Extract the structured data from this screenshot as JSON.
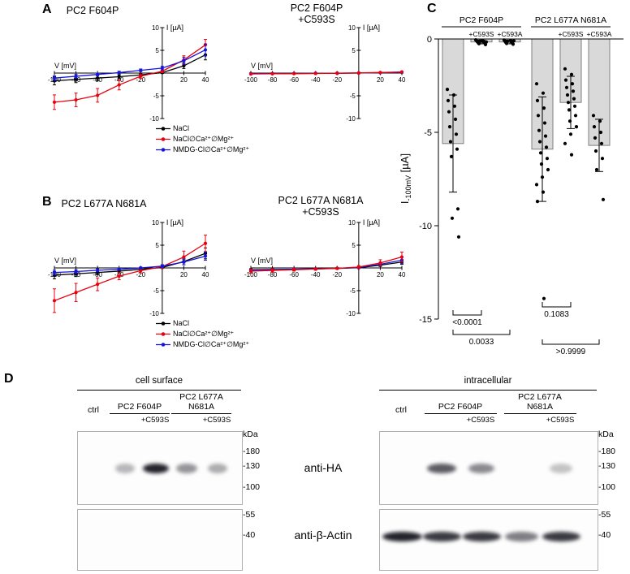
{
  "panels": {
    "a": {
      "label": "A"
    },
    "b": {
      "label": "B"
    },
    "c": {
      "label": "C"
    },
    "d": {
      "label": "D"
    }
  },
  "colors": {
    "black_series": "#000000",
    "red_series": "#e8000d",
    "blue_series": "#1414dc",
    "bar_fill": "#d9d9d9"
  },
  "legend": {
    "items": [
      {
        "label": "NaCl",
        "color": "#000000"
      },
      {
        "label": "NaCl∅Ca²⁺∅Mg²⁺",
        "color": "#e8000d"
      },
      {
        "label": "NMDG-Cl∅Ca²⁺∅Mg²⁺",
        "color": "#1414dc"
      }
    ]
  },
  "chart_data": [
    {
      "id": "a1",
      "type": "line",
      "title": "PC2 F604P",
      "title2": "",
      "xlabel": "V [mV]",
      "ylabel": "I [µA]",
      "xlim": [
        -100,
        40
      ],
      "ylim": [
        -10,
        10
      ],
      "x": [
        -100,
        -80,
        -60,
        -40,
        -20,
        0,
        20,
        40
      ],
      "x_ticks": [
        -100,
        -80,
        -60,
        -40,
        -20,
        20,
        40
      ],
      "y_ticks": [
        -10,
        -5,
        5,
        10
      ],
      "series": [
        {
          "name": "NaCl",
          "color": "#000000",
          "y": [
            -1.7,
            -1.4,
            -1.1,
            -0.8,
            -0.4,
            0.1,
            1.6,
            4.0
          ],
          "err": [
            0.9,
            0.7,
            0.6,
            0.4,
            0.3,
            0.2,
            0.6,
            1.1
          ]
        },
        {
          "name": "NaCl∅Ca²⁺∅Mg²⁺",
          "color": "#e8000d",
          "y": [
            -6.4,
            -5.9,
            -4.9,
            -2.6,
            -0.7,
            0.4,
            2.9,
            6.2
          ],
          "err": [
            1.6,
            1.5,
            1.5,
            1.1,
            0.5,
            0.3,
            0.9,
            1.2
          ]
        },
        {
          "name": "NMDG-Cl∅Ca²⁺∅Mg²⁺",
          "color": "#1414dc",
          "y": [
            -1.1,
            -0.7,
            -0.3,
            0.1,
            0.6,
            1.1,
            2.7,
            5.1
          ],
          "err": [
            0.5,
            0.4,
            0.3,
            0.3,
            0.3,
            0.4,
            0.8,
            1.3
          ]
        }
      ]
    },
    {
      "id": "a2",
      "type": "line",
      "title": "PC2 F604P",
      "title2": "+C593S",
      "xlabel": "V [mV]",
      "ylabel": "I [µA]",
      "xlim": [
        -100,
        40
      ],
      "ylim": [
        -10,
        10
      ],
      "x": [
        -100,
        -80,
        -60,
        -40,
        -20,
        0,
        20,
        40
      ],
      "x_ticks": [
        -100,
        -80,
        -60,
        -40,
        -20,
        20,
        40
      ],
      "y_ticks": [
        -10,
        -5,
        5,
        10
      ],
      "series": [
        {
          "name": "NaCl",
          "color": "#000000",
          "y": [
            -0.15,
            -0.12,
            -0.1,
            -0.07,
            -0.04,
            0,
            0.1,
            0.2
          ],
          "err": [
            0.1,
            0.1,
            0.1,
            0.1,
            0.1,
            0.1,
            0.1,
            0.1
          ]
        },
        {
          "name": "NMDG-Cl∅Ca²⁺∅Mg²⁺",
          "color": "#1414dc",
          "y": [
            -0.12,
            -0.1,
            -0.08,
            -0.05,
            -0.02,
            0.02,
            0.08,
            0.15
          ],
          "err": [
            0.08,
            0.08,
            0.08,
            0.08,
            0.08,
            0.08,
            0.08,
            0.08
          ]
        },
        {
          "name": "NaCl∅Ca²⁺∅Mg²⁺",
          "color": "#e8000d",
          "y": [
            -0.2,
            -0.16,
            -0.12,
            -0.08,
            -0.03,
            0.03,
            0.12,
            0.25
          ],
          "err": [
            0.12,
            0.12,
            0.12,
            0.12,
            0.12,
            0.12,
            0.12,
            0.12
          ]
        }
      ]
    },
    {
      "id": "b1",
      "type": "line",
      "title": "PC2 L677A N681A",
      "title2": "",
      "xlabel": "V [mV]",
      "ylabel": "I [µA]",
      "xlim": [
        -100,
        40
      ],
      "ylim": [
        -10,
        10
      ],
      "x": [
        -100,
        -80,
        -60,
        -40,
        -20,
        0,
        20,
        40
      ],
      "x_ticks": [
        -100,
        -80,
        -60,
        -40,
        -20,
        20,
        40
      ],
      "y_ticks": [
        -10,
        -5,
        5,
        10
      ],
      "series": [
        {
          "name": "NaCl",
          "color": "#000000",
          "y": [
            -1.6,
            -1.3,
            -1.0,
            -0.7,
            -0.3,
            0.1,
            1.4,
            3.2
          ],
          "err": [
            0.8,
            0.6,
            0.5,
            0.4,
            0.2,
            0.2,
            0.7,
            1.2
          ]
        },
        {
          "name": "NaCl∅Ca²⁺∅Mg²⁺",
          "color": "#e8000d",
          "y": [
            -7.2,
            -5.4,
            -3.6,
            -1.8,
            -0.6,
            0.3,
            2.4,
            5.4
          ],
          "err": [
            2.6,
            2.0,
            1.4,
            0.8,
            0.5,
            0.4,
            1.3,
            1.8
          ]
        },
        {
          "name": "NMDG-Cl∅Ca²⁺∅Mg²⁺",
          "color": "#1414dc",
          "y": [
            -1.0,
            -0.8,
            -0.5,
            -0.3,
            0.0,
            0.4,
            1.3,
            2.6
          ],
          "err": [
            0.5,
            0.4,
            0.3,
            0.2,
            0.2,
            0.3,
            0.6,
            0.9
          ]
        }
      ]
    },
    {
      "id": "b2",
      "type": "line",
      "title": "PC2 L677A N681A",
      "title2": "+C593S",
      "xlabel": "V [mV]",
      "ylabel": "I [µA]",
      "xlim": [
        -100,
        40
      ],
      "ylim": [
        -10,
        10
      ],
      "x": [
        -100,
        -80,
        -60,
        -40,
        -20,
        0,
        20,
        40
      ],
      "x_ticks": [
        -100,
        -80,
        -60,
        -40,
        -20,
        20,
        40
      ],
      "y_ticks": [
        -10,
        -5,
        5,
        10
      ],
      "series": [
        {
          "name": "NaCl",
          "color": "#000000",
          "y": [
            -0.4,
            -0.35,
            -0.3,
            -0.2,
            -0.1,
            0.05,
            0.6,
            1.3
          ],
          "err": [
            0.25,
            0.2,
            0.2,
            0.15,
            0.1,
            0.1,
            0.3,
            0.5
          ]
        },
        {
          "name": "NMDG-Cl∅Ca²⁺∅Mg²⁺",
          "color": "#1414dc",
          "y": [
            -0.5,
            -0.4,
            -0.3,
            -0.2,
            -0.1,
            0.1,
            0.8,
            1.7
          ],
          "err": [
            0.3,
            0.25,
            0.2,
            0.2,
            0.15,
            0.2,
            0.4,
            0.7
          ]
        },
        {
          "name": "NaCl∅Ca²⁺∅Mg²⁺",
          "color": "#e8000d",
          "y": [
            -0.7,
            -0.55,
            -0.4,
            -0.25,
            -0.1,
            0.2,
            1.1,
            2.4
          ],
          "err": [
            0.45,
            0.4,
            0.3,
            0.25,
            0.2,
            0.3,
            0.7,
            1.1
          ]
        }
      ]
    },
    {
      "id": "c",
      "type": "bar",
      "ylabel_main": "I",
      "ylabel_sub": "-100mV",
      "ylabel_unit": " [µA]",
      "ylim": [
        -15,
        0
      ],
      "y_ticks": [
        0,
        -5,
        -10,
        -15
      ],
      "bar_fill": "#d9d9d9",
      "groups": [
        {
          "label": "PC2 F604P",
          "bars": [
            0,
            1,
            2
          ]
        },
        {
          "label": "PC2 L677A N681A",
          "bars": [
            3,
            4,
            5
          ]
        }
      ],
      "bar_sublabels": [
        "",
        "+C593S",
        "+C593A",
        "",
        "+C593S",
        "+C593A"
      ],
      "values": [
        -5.6,
        -0.16,
        -0.16,
        -5.9,
        -3.4,
        -5.7
      ],
      "errors": [
        2.6,
        0.1,
        0.1,
        2.8,
        1.4,
        1.4
      ],
      "dots": [
        [
          -2.7,
          -3.0,
          -3.3,
          -3.6,
          -3.9,
          -4.3,
          -4.7,
          -5.1,
          -5.5,
          -5.9,
          -6.3,
          -9.1,
          -9.6,
          -10.6
        ],
        [
          -0.05,
          -0.08,
          -0.1,
          -0.12,
          -0.15,
          -0.18,
          -0.2,
          -0.22,
          -0.25,
          -0.3,
          -0.12,
          -0.16
        ],
        [
          -0.06,
          -0.09,
          -0.12,
          -0.15,
          -0.18,
          -0.2,
          -0.24,
          -0.28,
          -0.14,
          -0.1
        ],
        [
          -2.4,
          -2.9,
          -3.3,
          -3.7,
          -4.1,
          -4.5,
          -4.9,
          -5.2,
          -5.5,
          -5.8,
          -6.1,
          -6.4,
          -6.7,
          -7.0,
          -7.4,
          -7.8,
          -8.2,
          -8.7,
          -13.9
        ],
        [
          -1.6,
          -1.9,
          -2.2,
          -2.4,
          -2.6,
          -2.8,
          -3.0,
          -3.2,
          -3.4,
          -3.6,
          -3.8,
          -4.1,
          -4.4,
          -4.7,
          -5.1,
          -5.6,
          -6.2
        ],
        [
          -4.1,
          -4.4,
          -4.7,
          -5.0,
          -5.3,
          -5.6,
          -6.0,
          -6.4,
          -7.0,
          -8.6
        ]
      ],
      "brackets": [
        {
          "from": 0,
          "to": 1,
          "label": "<0.0001"
        },
        {
          "from": 0,
          "to": 2,
          "label": "0.0033"
        },
        {
          "from": 3,
          "to": 4,
          "label": "0.1083"
        },
        {
          "from": 3,
          "to": 5,
          "label": ">0.9999"
        }
      ]
    }
  ],
  "panel_d": {
    "row_labels": [
      "anti-HA",
      "anti-β-Actin"
    ],
    "markers": {
      "kda": "kDa",
      "m180": "-180",
      "m130": "-130",
      "m100": "-100",
      "m55": "-55",
      "m40": "-40"
    },
    "groups": [
      {
        "header": "cell surface",
        "lane0": "ctrl",
        "group1_label": "PC2 F604P",
        "group1_sub": "+C593S",
        "group2_label_line1": "PC2 L677A",
        "group2_label_line2": "N681A",
        "group2_sub": "+C593S",
        "ha_bands": [
          {
            "lane": 1,
            "i": 0.3
          },
          {
            "lane": 2,
            "i": 0.95
          },
          {
            "lane": 3,
            "i": 0.45
          },
          {
            "lane": 4,
            "i": 0.35
          }
        ],
        "actin_bands": []
      },
      {
        "header": "intracellular",
        "lane0": "ctrl",
        "group1_label": "PC2 F604P",
        "group1_sub": "+C593S",
        "group2_label_line1": "PC2 L677A",
        "group2_label_line2": "N681A",
        "group2_sub": "+C593S",
        "ha_bands": [
          {
            "lane": 1,
            "i": 0.7
          },
          {
            "lane": 2,
            "i": 0.5
          },
          {
            "lane": 4,
            "i": 0.25
          }
        ],
        "actin_bands": [
          {
            "lane": 0,
            "i": 0.95
          },
          {
            "lane": 1,
            "i": 0.85
          },
          {
            "lane": 2,
            "i": 0.85
          },
          {
            "lane": 3,
            "i": 0.55
          },
          {
            "lane": 4,
            "i": 0.85
          }
        ]
      }
    ]
  }
}
